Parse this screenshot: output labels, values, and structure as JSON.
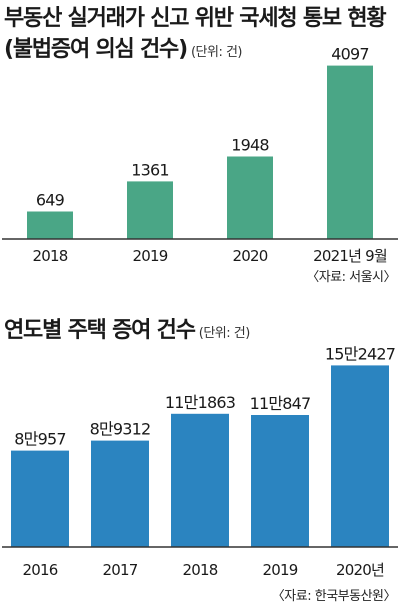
{
  "chart_data": [
    {
      "type": "bar",
      "title": "부동산 실거래가 신고 위반 국세청 통보 현황",
      "subtitle": "(불법증여 의심 건수)",
      "unit_note": "(단위: 건)",
      "source": "〈자료: 서울시〉",
      "categories": [
        "2018",
        "2019",
        "2020",
        "2021년 9월"
      ],
      "values": [
        649,
        1361,
        1948,
        4097
      ],
      "value_labels": [
        "649",
        "1361",
        "1948",
        "4097"
      ],
      "ylim": [
        0,
        4300
      ],
      "color": "#4aa686",
      "grid": false
    },
    {
      "type": "bar",
      "title": "연도별 주택 증여 건수",
      "unit_note": "(단위: 건)",
      "source": "〈자료: 한국부동산원〉",
      "categories": [
        "2016",
        "2017",
        "2018",
        "2019",
        "2020년"
      ],
      "values": [
        80957,
        89312,
        111863,
        110847,
        152427
      ],
      "value_labels": [
        "8만957",
        "8만9312",
        "11만1863",
        "11만847",
        "15만2427"
      ],
      "ylim": [
        0,
        157000
      ],
      "color": "#2b84c0",
      "grid": false
    }
  ]
}
